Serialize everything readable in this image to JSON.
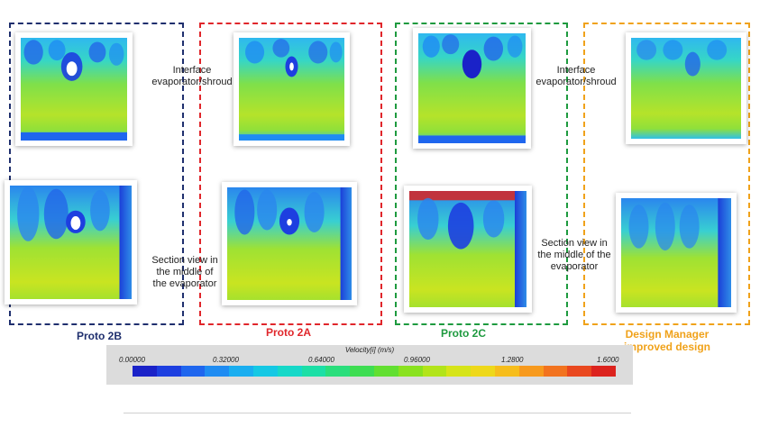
{
  "captions": {
    "interface": "Interface evaporator/shroud",
    "section": "Section view in the middle of the evaporator"
  },
  "groups": [
    {
      "label": "Proto 2B",
      "color": "#1f2f6e"
    },
    {
      "label": "Proto 2A",
      "color": "#e0262b"
    },
    {
      "label": "Proto 2C",
      "color": "#1e9a3f"
    },
    {
      "label": "Design Manager improved design",
      "color": "#f0a21a"
    }
  ],
  "colorbar": {
    "title": "Velocity[i] (m/s)",
    "ticks": [
      "0.00000",
      "0.32000",
      "0.64000",
      "0.96000",
      "1.2800",
      "1.6000"
    ],
    "min": 0.0,
    "max": 1.6,
    "colors": [
      "#1a22c8",
      "#1d3fe0",
      "#1f66ee",
      "#1f8cf2",
      "#1aaef0",
      "#15c8e4",
      "#16d8c8",
      "#1cdfa6",
      "#2ade7c",
      "#3edd52",
      "#62df31",
      "#8ae21f",
      "#b2e41a",
      "#d6e419",
      "#eed81a",
      "#f6bd1c",
      "#f79a1e",
      "#f2731f",
      "#e9481f",
      "#dc231e"
    ]
  }
}
